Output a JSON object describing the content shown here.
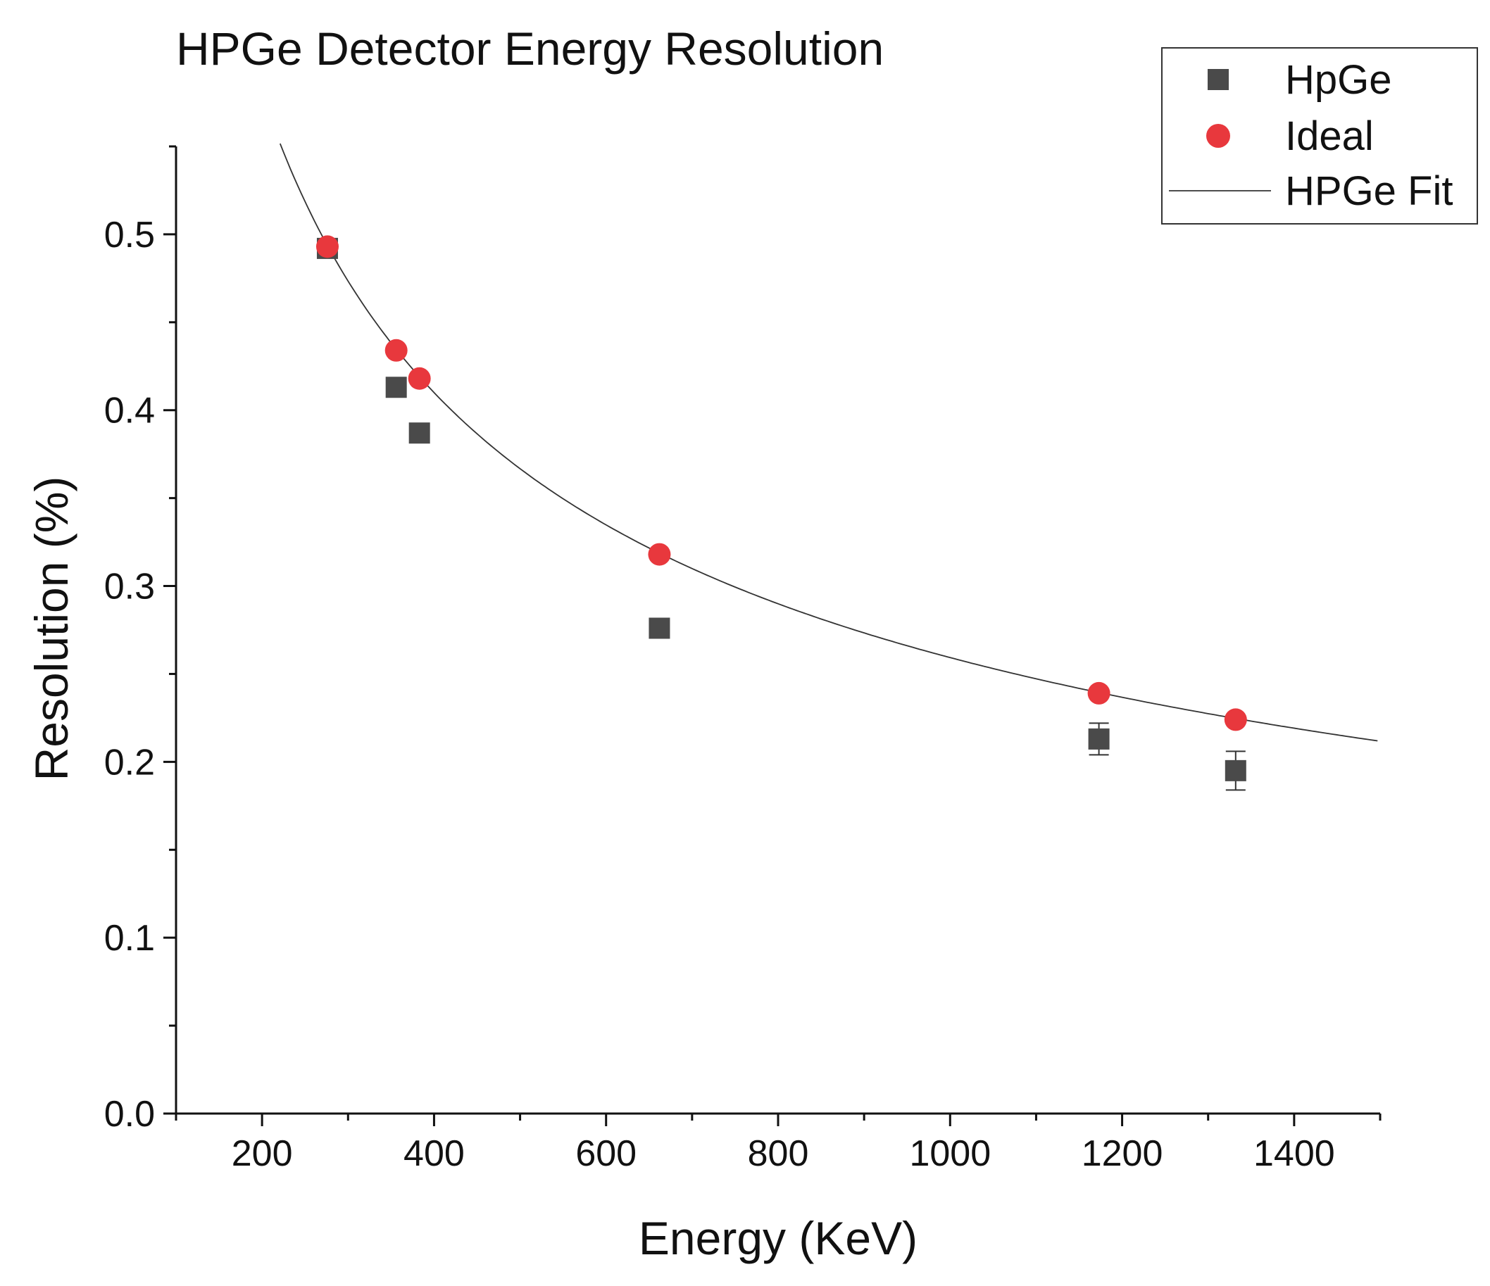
{
  "chart_data": {
    "type": "scatter",
    "title": "HPGe Detector Energy Resolution",
    "xlabel": "Energy (KeV)",
    "ylabel": "Resolution (%)",
    "xlim": [
      100,
      1500
    ],
    "ylim": [
      0,
      0.55
    ],
    "x_ticks": [
      200,
      400,
      600,
      800,
      1000,
      1200,
      1400
    ],
    "x_tick_labels": [
      "200",
      "400",
      "600",
      "800",
      "1000",
      "1200",
      "1400"
    ],
    "x_minor_ticks": [
      100,
      300,
      500,
      700,
      900,
      1100,
      1300,
      1500
    ],
    "y_ticks": [
      0,
      0.1,
      0.2,
      0.3,
      0.4,
      0.5
    ],
    "y_tick_labels": [
      "0.0",
      "0.1",
      "0.2",
      "0.3",
      "0.4",
      "0.5"
    ],
    "y_minor_ticks": [
      0.05,
      0.15,
      0.25,
      0.35,
      0.45,
      0.55
    ],
    "grid": false,
    "legend_position": "top-right",
    "series": [
      {
        "name": "HpGe",
        "marker": "square",
        "color": "#4a4a4a",
        "x": [
          276,
          356,
          383,
          662,
          1173,
          1332
        ],
        "y": [
          0.492,
          0.413,
          0.387,
          0.276,
          0.213,
          0.195
        ],
        "error": [
          0,
          0,
          0,
          0,
          0.009,
          0.011
        ]
      },
      {
        "name": "Ideal",
        "marker": "circle",
        "color": "#e8383d",
        "x": [
          276,
          356,
          383,
          662,
          1173,
          1332
        ],
        "y": [
          0.493,
          0.434,
          0.418,
          0.318,
          0.239,
          0.224
        ]
      },
      {
        "name": "HPGe Fit",
        "marker": "line",
        "color": "#333333",
        "fit": {
          "model": "power",
          "a": 8.2,
          "b": -0.5
        },
        "x_range": [
          221,
          1500
        ]
      }
    ]
  }
}
